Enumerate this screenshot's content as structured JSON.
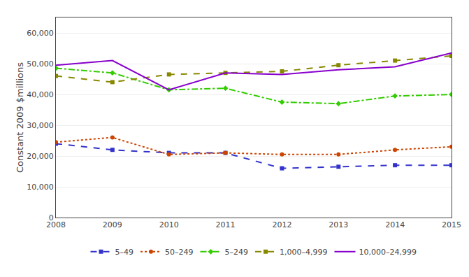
{
  "chart_data": {
    "type": "line",
    "ylabel": "Constant 2009 $millions",
    "x": [
      2008,
      2009,
      2010,
      2011,
      2012,
      2013,
      2014,
      2015
    ],
    "series": [
      {
        "name": "5–49",
        "color": "#3333cc",
        "marker": "square",
        "line_style": "dashed",
        "values": [
          24000,
          22000,
          21000,
          21000,
          16000,
          16500,
          17000,
          17000
        ]
      },
      {
        "name": "50–249",
        "color": "#cc4400",
        "marker": "circle",
        "line_style": "dotted",
        "values": [
          24500,
          26000,
          20500,
          21000,
          20500,
          20500,
          22000,
          23000
        ]
      },
      {
        "name": "5–249",
        "color": "#33cc00",
        "marker": "diamond",
        "line_style": "dashdot",
        "values": [
          48500,
          47000,
          41500,
          42000,
          37500,
          37000,
          39500,
          40000
        ]
      },
      {
        "name": "1,000–4,999",
        "color": "#888800",
        "marker": "square",
        "line_style": "dashed",
        "values": [
          46000,
          44000,
          46500,
          47000,
          47500,
          49500,
          51000,
          52500
        ]
      },
      {
        "name": "10,000–24,999",
        "color": "#8800cc",
        "marker": "none",
        "line_style": "solid",
        "values": [
          49500,
          51000,
          41500,
          47000,
          46500,
          48000,
          49000,
          53500
        ]
      }
    ],
    "xlim": [
      2008,
      2015
    ],
    "xticks": [
      2008,
      2009,
      2010,
      2011,
      2012,
      2013,
      2014,
      2015
    ],
    "ylim": [
      0,
      65000
    ],
    "yticks": [
      0,
      {
        "value": 10000,
        "label": "10,000"
      },
      {
        "value": 20000,
        "label": "20,000"
      },
      {
        "value": 30000,
        "label": "30,000"
      },
      {
        "value": 40000,
        "label": "40,000"
      },
      {
        "value": 50000,
        "label": "50,000"
      },
      {
        "value": 60000,
        "label": "60,000"
      }
    ],
    "grid": true,
    "legend": "bottom"
  }
}
